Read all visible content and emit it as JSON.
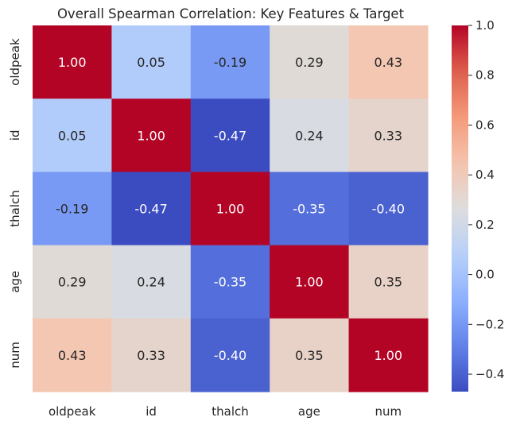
{
  "chart_data": {
    "type": "heatmap",
    "title": "Overall Spearman Correlation: Key Features & Target",
    "x_labels": [
      "oldpeak",
      "id",
      "thalch",
      "age",
      "num"
    ],
    "y_labels": [
      "oldpeak",
      "id",
      "thalch",
      "age",
      "num"
    ],
    "values": [
      [
        1.0,
        0.05,
        -0.19,
        0.29,
        0.43
      ],
      [
        0.05,
        1.0,
        -0.47,
        0.24,
        0.33
      ],
      [
        -0.19,
        -0.47,
        1.0,
        -0.35,
        -0.4
      ],
      [
        0.29,
        0.24,
        -0.35,
        1.0,
        0.35
      ],
      [
        0.43,
        0.33,
        -0.4,
        0.35,
        1.0
      ]
    ],
    "colormap": "coolwarm",
    "vmin": -0.47,
    "vmax": 1.0,
    "colorbar_ticks": [
      "1.0",
      "0.8",
      "0.6",
      "0.4",
      "0.2",
      "0.0",
      "−0.2",
      "−0.4"
    ],
    "annotation_format": "0.00"
  }
}
